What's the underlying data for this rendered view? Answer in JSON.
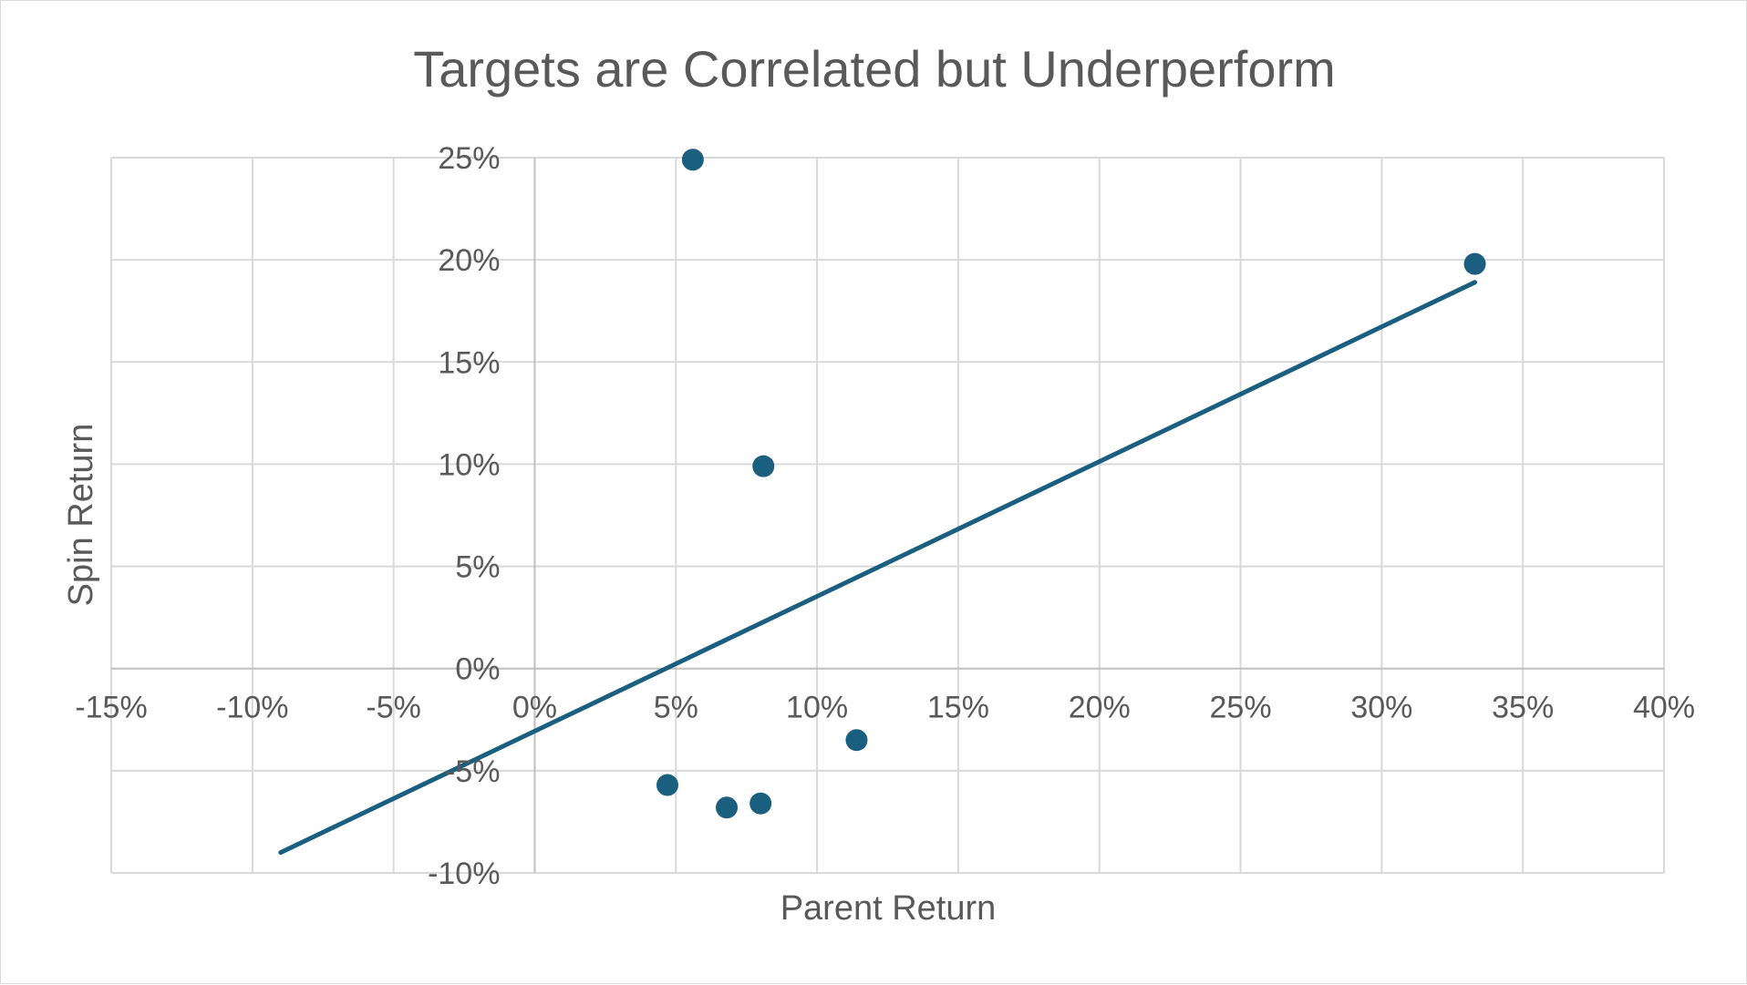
{
  "chart_data": {
    "type": "scatter",
    "title": "Targets are Correlated but Underperform",
    "xlabel": "Parent Return",
    "ylabel": "Spin Return",
    "xlim": [
      -0.15,
      0.4
    ],
    "ylim": [
      -0.1,
      0.25
    ],
    "x_ticks": [
      -0.15,
      -0.1,
      -0.05,
      0,
      0.05,
      0.1,
      0.15,
      0.2,
      0.25,
      0.3,
      0.35,
      0.4
    ],
    "x_tick_labels": [
      "-15%",
      "-10%",
      "-5%",
      "0%",
      "5%",
      "10%",
      "15%",
      "20%",
      "25%",
      "30%",
      "35%",
      "40%"
    ],
    "y_ticks": [
      0.25,
      0.2,
      0.15,
      0.1,
      0.05,
      0,
      -0.05,
      -0.1
    ],
    "y_tick_labels": [
      "25%",
      "20%",
      "15%",
      "10%",
      "5%",
      "0%",
      "-5%",
      "-10%"
    ],
    "grid": true,
    "legend": "none",
    "series": [
      {
        "points": [
          {
            "x": 0.056,
            "y": 0.249
          },
          {
            "x": 0.081,
            "y": 0.099
          },
          {
            "x": 0.333,
            "y": 0.198
          },
          {
            "x": 0.114,
            "y": -0.035
          },
          {
            "x": 0.047,
            "y": -0.057
          },
          {
            "x": 0.068,
            "y": -0.068
          },
          {
            "x": 0.08,
            "y": -0.066
          }
        ],
        "color": "#1a5e80"
      }
    ],
    "trendline": {
      "type": "linear",
      "x_start": -0.09,
      "x_end": 0.333,
      "y_start": -0.09,
      "y_end": 0.189,
      "color": "#1a5e80"
    }
  }
}
